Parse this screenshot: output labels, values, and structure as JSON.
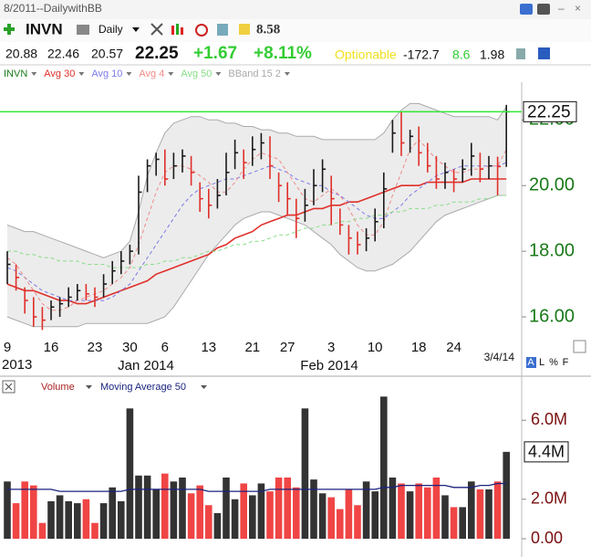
{
  "toolbar": {
    "layout": "8/2011--DailywithBB",
    "period": "Daily",
    "value": "8.58"
  },
  "quote": {
    "open": "20.88",
    "high": "22.46",
    "low": "20.57",
    "last": "22.25",
    "change": "+1.67",
    "change_pct": "+8.11%",
    "tag": "Optionable",
    "v1": "-172.7",
    "v2": "8.6",
    "v3": "1.98"
  },
  "chart_data": [
    {
      "type": "ohlc",
      "name": "INVN",
      "categories": [
        "9",
        null,
        null,
        null,
        null,
        "16",
        null,
        null,
        null,
        null,
        "23",
        null,
        null,
        null,
        "30",
        null,
        null,
        null,
        "6",
        null,
        null,
        null,
        null,
        "13",
        null,
        null,
        null,
        null,
        "21",
        null,
        null,
        null,
        "27",
        null,
        null,
        null,
        null,
        "3",
        null,
        null,
        null,
        null,
        "10",
        null,
        null,
        null,
        null,
        "18",
        null,
        null,
        null,
        "24",
        null,
        null,
        null,
        null,
        null,
        null
      ],
      "period_labels": [
        "2013",
        "Jan 2014",
        "Feb 2014"
      ],
      "date": "3/4/14",
      "scale_buttons": [
        "A",
        "L",
        "%",
        "F"
      ],
      "high": [
        18.0,
        17.6,
        16.9,
        16.6,
        16.3,
        16.5,
        16.6,
        16.9,
        17.0,
        17.0,
        16.9,
        17.3,
        17.7,
        18.0,
        18.2,
        20.3,
        20.8,
        21.0,
        21.1,
        21.0,
        21.1,
        20.9,
        20.1,
        19.9,
        20.2,
        21.0,
        21.4,
        21.1,
        21.5,
        21.6,
        21.5,
        20.4,
        20.1,
        19.6,
        19.9,
        20.5,
        20.8,
        20.3,
        19.3,
        18.8,
        18.6,
        18.7,
        19.3,
        20.4,
        22.0,
        22.25,
        21.7,
        21.8,
        21.3,
        20.9,
        20.7,
        20.5,
        20.8,
        21.3,
        21.0,
        20.9,
        20.88,
        22.46
      ],
      "low": [
        17.0,
        16.8,
        16.1,
        15.7,
        15.6,
        15.9,
        16.0,
        16.3,
        16.5,
        16.5,
        16.3,
        16.6,
        17.0,
        17.3,
        17.6,
        17.9,
        19.8,
        20.3,
        20.0,
        20.2,
        20.4,
        20.0,
        19.2,
        19.0,
        19.3,
        19.7,
        20.5,
        20.2,
        20.6,
        20.8,
        20.2,
        19.5,
        19.1,
        18.4,
        18.9,
        19.4,
        19.8,
        18.8,
        18.5,
        17.9,
        17.9,
        18.0,
        18.3,
        18.7,
        21.0,
        20.9,
        21.0,
        20.6,
        20.4,
        19.9,
        19.9,
        19.8,
        20.1,
        20.3,
        20.1,
        20.2,
        19.7,
        20.57
      ],
      "close": [
        17.6,
        17.2,
        16.5,
        16.0,
        15.9,
        16.3,
        16.4,
        16.6,
        16.8,
        16.7,
        16.6,
        17.0,
        17.4,
        17.7,
        18.0,
        19.8,
        20.6,
        20.8,
        20.2,
        20.6,
        20.9,
        20.4,
        19.6,
        19.4,
        19.7,
        20.4,
        21.0,
        20.7,
        21.1,
        21.3,
        20.6,
        20.0,
        19.6,
        19.0,
        19.4,
        20.0,
        20.5,
        19.6,
        18.8,
        18.4,
        18.2,
        18.4,
        18.9,
        19.9,
        21.6,
        21.3,
        21.5,
        21.0,
        20.6,
        20.2,
        20.4,
        20.2,
        20.5,
        20.9,
        20.5,
        20.6,
        20.58,
        22.25
      ],
      "up_color": "#1a1a1a",
      "down_color": "#e0302a",
      "last_line_color": "#33e633",
      "series": [
        {
          "name": "Avg 30",
          "color": "#e0302a",
          "dash": false,
          "values": [
            17.0,
            16.9,
            16.8,
            16.8,
            16.7,
            16.6,
            16.5,
            16.5,
            16.4,
            16.4,
            16.5,
            16.6,
            16.7,
            16.8,
            16.9,
            17.0,
            17.1,
            17.3,
            17.4,
            17.5,
            17.6,
            17.7,
            17.8,
            17.9,
            18.1,
            18.2,
            18.4,
            18.5,
            18.6,
            18.8,
            18.9,
            19.0,
            19.1,
            19.1,
            19.2,
            19.3,
            19.3,
            19.4,
            19.4,
            19.5,
            19.5,
            19.6,
            19.7,
            19.8,
            19.9,
            20.0,
            20.0,
            20.0,
            20.1,
            20.1,
            20.1,
            20.1,
            20.1,
            20.2,
            20.2,
            20.2,
            20.2,
            20.2
          ]
        },
        {
          "name": "Avg 10",
          "color": "#7b7bea",
          "dash": true,
          "values": [
            17.5,
            17.4,
            17.2,
            17.0,
            16.8,
            16.7,
            16.6,
            16.5,
            16.5,
            16.5,
            16.5,
            16.5,
            16.6,
            16.8,
            17.0,
            17.4,
            17.8,
            18.2,
            18.6,
            19.0,
            19.4,
            19.7,
            19.9,
            20.0,
            20.1,
            20.2,
            20.2,
            20.3,
            20.4,
            20.5,
            20.6,
            20.5,
            20.4,
            20.2,
            20.1,
            20.0,
            20.0,
            19.8,
            19.7,
            19.5,
            19.3,
            19.1,
            19.0,
            19.0,
            19.2,
            19.4,
            19.7,
            19.9,
            20.1,
            20.3,
            20.4,
            20.5,
            20.6,
            20.6,
            20.6,
            20.6,
            20.6,
            20.7
          ]
        },
        {
          "name": "Avg 4",
          "color": "#f08a8a",
          "dash": true,
          "values": [
            17.8,
            17.6,
            17.2,
            16.8,
            16.4,
            16.2,
            16.2,
            16.3,
            16.5,
            16.6,
            16.7,
            16.8,
            17.0,
            17.2,
            17.5,
            18.2,
            19.0,
            19.8,
            20.4,
            20.6,
            20.6,
            20.5,
            20.3,
            20.1,
            19.8,
            19.8,
            20.1,
            20.5,
            20.8,
            21.0,
            20.9,
            20.8,
            20.4,
            20.0,
            19.6,
            19.5,
            19.7,
            19.9,
            19.7,
            19.3,
            18.8,
            18.5,
            18.5,
            18.9,
            19.7,
            20.4,
            21.1,
            21.4,
            21.1,
            20.8,
            20.6,
            20.4,
            20.4,
            20.5,
            20.5,
            20.6,
            20.6,
            21.1
          ]
        },
        {
          "name": "Avg 50",
          "color": "#88dd88",
          "dash": true,
          "values": [
            18.0,
            18.0,
            17.9,
            17.9,
            17.8,
            17.8,
            17.7,
            17.7,
            17.7,
            17.6,
            17.6,
            17.6,
            17.5,
            17.5,
            17.5,
            17.5,
            17.6,
            17.6,
            17.7,
            17.7,
            17.8,
            17.8,
            17.9,
            18.0,
            18.0,
            18.1,
            18.2,
            18.2,
            18.3,
            18.3,
            18.4,
            18.5,
            18.5,
            18.6,
            18.7,
            18.7,
            18.8,
            18.8,
            18.9,
            18.9,
            19.0,
            19.0,
            19.1,
            19.1,
            19.2,
            19.2,
            19.3,
            19.3,
            19.3,
            19.4,
            19.4,
            19.5,
            19.5,
            19.5,
            19.6,
            19.6,
            19.7,
            19.7
          ]
        }
      ],
      "bands": {
        "name": "BBand 15 2",
        "color": "#aaaaaa",
        "fill": "#ececec",
        "upper": [
          18.8,
          18.7,
          18.6,
          18.6,
          18.5,
          18.4,
          18.3,
          18.2,
          18.1,
          18.0,
          17.9,
          17.8,
          17.9,
          18.0,
          18.3,
          19.2,
          20.3,
          21.0,
          21.6,
          21.9,
          22.0,
          22.1,
          22.1,
          22.0,
          22.0,
          21.9,
          21.9,
          21.8,
          21.8,
          21.7,
          21.7,
          21.6,
          21.6,
          21.5,
          21.5,
          21.5,
          21.4,
          21.4,
          21.4,
          21.4,
          21.4,
          21.4,
          21.4,
          21.6,
          22.0,
          22.3,
          22.5,
          22.5,
          22.4,
          22.3,
          22.2,
          22.1,
          22.1,
          22.1,
          22.1,
          22.1,
          22.0,
          22.4
        ],
        "lower": [
          16.0,
          15.9,
          15.8,
          15.7,
          15.7,
          15.7,
          15.7,
          15.7,
          15.7,
          15.8,
          15.8,
          15.8,
          15.8,
          15.8,
          15.8,
          15.8,
          15.8,
          15.9,
          16.0,
          16.3,
          16.7,
          17.1,
          17.5,
          17.9,
          18.2,
          18.5,
          18.8,
          19.0,
          19.1,
          19.2,
          19.2,
          19.1,
          19.0,
          18.9,
          18.8,
          18.6,
          18.4,
          18.2,
          17.9,
          17.7,
          17.5,
          17.4,
          17.4,
          17.5,
          17.6,
          17.8,
          18.0,
          18.3,
          18.6,
          18.9,
          19.1,
          19.2,
          19.3,
          19.4,
          19.5,
          19.6,
          19.7,
          19.7
        ]
      },
      "ylim": [
        15.5,
        23.15
      ],
      "yticks": [
        {
          "value": 16,
          "label": "16.00"
        },
        {
          "value": 18,
          "label": "18.00"
        },
        {
          "value": 20,
          "label": "20.00"
        },
        {
          "value": 22,
          "label": "22.00"
        }
      ]
    },
    {
      "type": "bar",
      "title": "Volume",
      "up_color": "#333333",
      "down_color": "#f04545",
      "values": [
        2.9,
        1.8,
        2.9,
        2.7,
        0.8,
        1.9,
        2.2,
        1.9,
        1.8,
        2.0,
        0.8,
        1.8,
        2.6,
        1.9,
        6.6,
        3.2,
        3.2,
        2.5,
        3.3,
        2.9,
        3.1,
        2.3,
        2.7,
        1.7,
        1.3,
        3.1,
        2.0,
        2.8,
        2.2,
        2.8,
        2.4,
        3.1,
        3.1,
        2.6,
        6.6,
        3.0,
        2.3,
        2.1,
        1.5,
        2.5,
        1.7,
        2.9,
        2.4,
        7.2,
        3.1,
        2.8,
        2.4,
        2.8,
        2.6,
        3.1,
        2.2,
        1.6,
        1.6,
        2.9,
        2.5,
        2.5,
        2.9,
        4.4
      ],
      "last_value_label": "4.4M",
      "series": [
        {
          "name": "Moving Average 50",
          "color": "#1a237e",
          "values": [
            2.5,
            2.5,
            2.5,
            2.5,
            2.5,
            2.5,
            2.4,
            2.4,
            2.4,
            2.4,
            2.4,
            2.4,
            2.4,
            2.4,
            2.5,
            2.5,
            2.5,
            2.5,
            2.5,
            2.5,
            2.5,
            2.5,
            2.5,
            2.4,
            2.4,
            2.4,
            2.4,
            2.4,
            2.4,
            2.4,
            2.5,
            2.5,
            2.5,
            2.5,
            2.5,
            2.5,
            2.5,
            2.5,
            2.5,
            2.5,
            2.5,
            2.5,
            2.5,
            2.6,
            2.6,
            2.7,
            2.7,
            2.7,
            2.7,
            2.7,
            2.7,
            2.6,
            2.6,
            2.6,
            2.7,
            2.7,
            2.8,
            2.8
          ]
        }
      ],
      "ylim": [
        0,
        7.4
      ],
      "yticks": [
        {
          "value": 0,
          "label": "0.00"
        },
        {
          "value": 2,
          "label": "2.0M"
        },
        {
          "value": 6,
          "label": "6.0M"
        }
      ]
    }
  ]
}
